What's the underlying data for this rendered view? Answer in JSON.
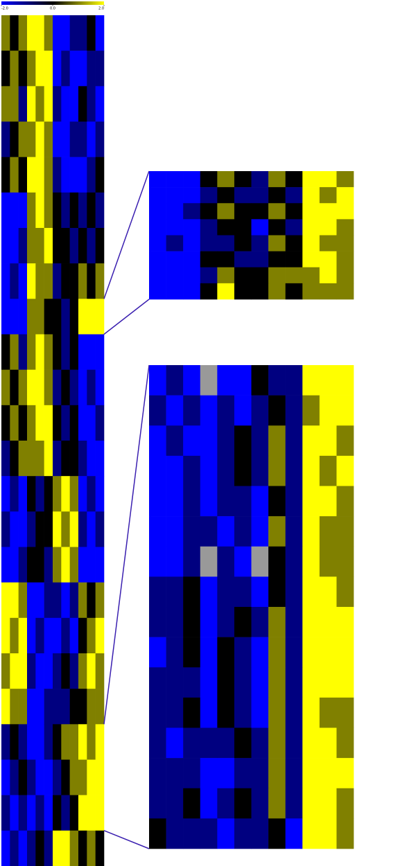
{
  "chart_data": {
    "type": "heatmap",
    "colors": {
      "low": "#0000ff",
      "mid": "#000000",
      "high": "#ffff00",
      "missing": "#999999",
      "connector": "#3a1fb0"
    },
    "clim": [
      -2,
      2
    ],
    "ticks": [
      {
        "value": -2,
        "label": "-2.0"
      },
      {
        "value": 0,
        "label": "0.0"
      },
      {
        "value": 2,
        "label": "2.0"
      }
    ],
    "panels": [
      {
        "values": [
          [
            1,
            0,
            1,
            2,
            2,
            1,
            -2,
            -2,
            -1,
            -1,
            0,
            -2
          ],
          [
            0,
            1,
            0,
            1,
            2,
            2,
            -2,
            -1,
            -2,
            -2,
            -1,
            -1
          ],
          [
            1,
            1,
            -1,
            2,
            1,
            2,
            -1,
            -2,
            -2,
            0,
            -1,
            -2
          ],
          [
            -1,
            0,
            1,
            1,
            2,
            1,
            -2,
            -2,
            -1,
            -1,
            -2,
            -1
          ],
          [
            0,
            1,
            0,
            2,
            2,
            1,
            -1,
            -2,
            -2,
            -2,
            -1,
            0
          ],
          [
            -2,
            -2,
            -2,
            1,
            2,
            1,
            0,
            -1,
            0,
            -1,
            0,
            -1
          ],
          [
            -2,
            -2,
            -1,
            1,
            1,
            2,
            0,
            0,
            -1,
            0,
            -1,
            0
          ],
          [
            -2,
            -1,
            -2,
            2,
            1,
            1,
            -1,
            0,
            0,
            1,
            0,
            1
          ],
          [
            -2,
            -2,
            -2,
            1,
            1,
            0,
            0,
            -1,
            0,
            2,
            2,
            2
          ],
          [
            0,
            1,
            -1,
            1,
            2,
            1,
            0,
            -1,
            0,
            -2,
            -2,
            -2
          ],
          [
            1,
            0,
            1,
            2,
            2,
            1,
            -1,
            0,
            -1,
            -2,
            -1,
            -2
          ],
          [
            0,
            1,
            0,
            1,
            2,
            2,
            0,
            -1,
            0,
            -2,
            -2,
            -1
          ],
          [
            -1,
            0,
            1,
            1,
            1,
            2,
            -1,
            0,
            0,
            -1,
            -2,
            -2
          ],
          [
            -2,
            -1,
            -2,
            0,
            -1,
            0,
            1,
            2,
            1,
            -2,
            -1,
            -2
          ],
          [
            -1,
            -2,
            -2,
            -1,
            0,
            0,
            2,
            1,
            2,
            -1,
            -2,
            -1
          ],
          [
            -2,
            -2,
            -1,
            0,
            0,
            -1,
            1,
            2,
            1,
            -2,
            -2,
            -2
          ],
          [
            2,
            2,
            1,
            -2,
            -2,
            -1,
            -1,
            -2,
            -1,
            1,
            0,
            1
          ],
          [
            2,
            1,
            2,
            -2,
            -1,
            -2,
            -2,
            -1,
            -2,
            0,
            1,
            2
          ],
          [
            1,
            2,
            2,
            -1,
            -2,
            -2,
            -1,
            0,
            -1,
            1,
            2,
            1
          ],
          [
            2,
            1,
            1,
            -2,
            -2,
            -1,
            -1,
            -1,
            0,
            0,
            1,
            1
          ],
          [
            -1,
            0,
            -1,
            -2,
            -2,
            -1,
            0,
            1,
            1,
            2,
            1,
            2
          ],
          [
            -2,
            -1,
            0,
            -1,
            -2,
            -2,
            -1,
            0,
            1,
            1,
            2,
            2
          ],
          [
            -1,
            -2,
            -1,
            -2,
            -1,
            -2,
            0,
            -1,
            0,
            2,
            2,
            2
          ],
          [
            -2,
            -1,
            -2,
            -1,
            0,
            -1,
            2,
            2,
            1,
            0,
            1,
            0
          ]
        ]
      },
      {
        "values": [
          [
            -2,
            -2,
            -2,
            0,
            1,
            0,
            -1,
            1,
            0,
            2,
            2,
            1
          ],
          [
            -2,
            -2,
            -2,
            -1,
            0,
            -1,
            -1,
            0,
            -1,
            2,
            1,
            2
          ],
          [
            -2,
            -2,
            -1,
            0,
            1,
            0,
            0,
            1,
            0,
            2,
            2,
            2
          ],
          [
            -2,
            -2,
            -2,
            -1,
            0,
            0,
            -2,
            0,
            -1,
            2,
            2,
            1
          ],
          [
            -2,
            -1,
            -2,
            -1,
            -1,
            0,
            -1,
            1,
            0,
            2,
            1,
            1
          ],
          [
            -2,
            -2,
            -2,
            0,
            0,
            -1,
            -1,
            0,
            0,
            2,
            2,
            1
          ],
          [
            -2,
            -2,
            -2,
            -1,
            1,
            0,
            0,
            1,
            1,
            1,
            2,
            1
          ],
          [
            -2,
            -2,
            -2,
            0,
            2,
            0,
            0,
            1,
            0,
            1,
            1,
            1
          ]
        ]
      },
      {
        "values": [
          [
            -2,
            -1,
            -2,
            null,
            -2,
            -2,
            0,
            -1,
            -1,
            2,
            2,
            2
          ],
          [
            -1,
            -2,
            -1,
            -2,
            -1,
            -2,
            -1,
            0,
            -1,
            1,
            2,
            2
          ],
          [
            -2,
            -1,
            -2,
            -2,
            -1,
            0,
            -1,
            1,
            -1,
            2,
            2,
            1
          ],
          [
            -2,
            -2,
            -1,
            -2,
            -1,
            0,
            -1,
            1,
            -1,
            2,
            1,
            2
          ],
          [
            -2,
            -2,
            -1,
            -2,
            -1,
            -1,
            -2,
            0,
            -1,
            2,
            2,
            1
          ],
          [
            -2,
            -2,
            -1,
            -1,
            -2,
            -1,
            -2,
            1,
            -1,
            2,
            1,
            1
          ],
          [
            -2,
            -2,
            -1,
            null,
            -1,
            -2,
            null,
            0,
            -1,
            2,
            1,
            1
          ],
          [
            -1,
            -1,
            0,
            -2,
            -1,
            -1,
            -2,
            0,
            -1,
            2,
            2,
            1
          ],
          [
            -1,
            -1,
            0,
            -2,
            -1,
            0,
            -1,
            1,
            -1,
            2,
            2,
            2
          ],
          [
            -2,
            -1,
            0,
            -2,
            0,
            -1,
            -2,
            1,
            -1,
            2,
            2,
            2
          ],
          [
            -1,
            -1,
            -1,
            -2,
            0,
            -1,
            -2,
            1,
            -1,
            2,
            2,
            2
          ],
          [
            -1,
            -1,
            0,
            -2,
            0,
            -1,
            -2,
            1,
            -1,
            2,
            1,
            1
          ],
          [
            -1,
            -2,
            -1,
            -1,
            -1,
            0,
            -1,
            1,
            -1,
            2,
            2,
            1
          ],
          [
            -1,
            -1,
            -1,
            -2,
            -2,
            -1,
            -1,
            1,
            -1,
            2,
            2,
            2
          ],
          [
            -1,
            -1,
            0,
            -2,
            -1,
            0,
            -1,
            1,
            -1,
            2,
            2,
            1
          ],
          [
            0,
            -1,
            -1,
            -1,
            -2,
            -1,
            -1,
            0,
            -2,
            2,
            2,
            1
          ]
        ]
      }
    ]
  }
}
